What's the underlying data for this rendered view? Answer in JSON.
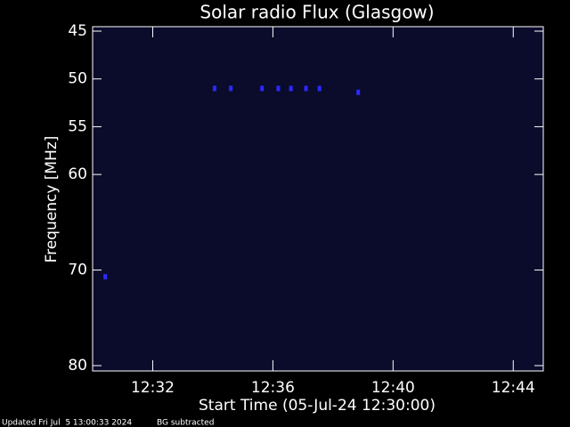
{
  "chart_data": {
    "type": "spectrogram",
    "title": "Solar radio Flux (Glasgow)",
    "xlabel": "Start Time (05-Jul-24 12:30:00)",
    "ylabel": "Frequency [MHz]",
    "footer": [
      "Updated Fri Jul  5 13:00:33 2024",
      "BG subtracted"
    ],
    "xlim": [
      0,
      15
    ],
    "xticks": [
      {
        "value": 2,
        "label": "12:32"
      },
      {
        "value": 6,
        "label": "12:36"
      },
      {
        "value": 10,
        "label": "12:40"
      },
      {
        "value": 14,
        "label": "12:44"
      }
    ],
    "ylim": [
      45,
      80
    ],
    "yticks": [
      45,
      50,
      55,
      60,
      70,
      80
    ],
    "background": "#0b0b2c",
    "series": [
      {
        "color": "#2a2aff",
        "x": [
          4.06,
          4.6,
          5.64,
          6.18,
          6.6,
          7.1,
          7.55,
          8.84,
          0.42
        ],
        "values": [
          51,
          51,
          51,
          51,
          51,
          51,
          51,
          51.4,
          70.7
        ]
      }
    ]
  }
}
